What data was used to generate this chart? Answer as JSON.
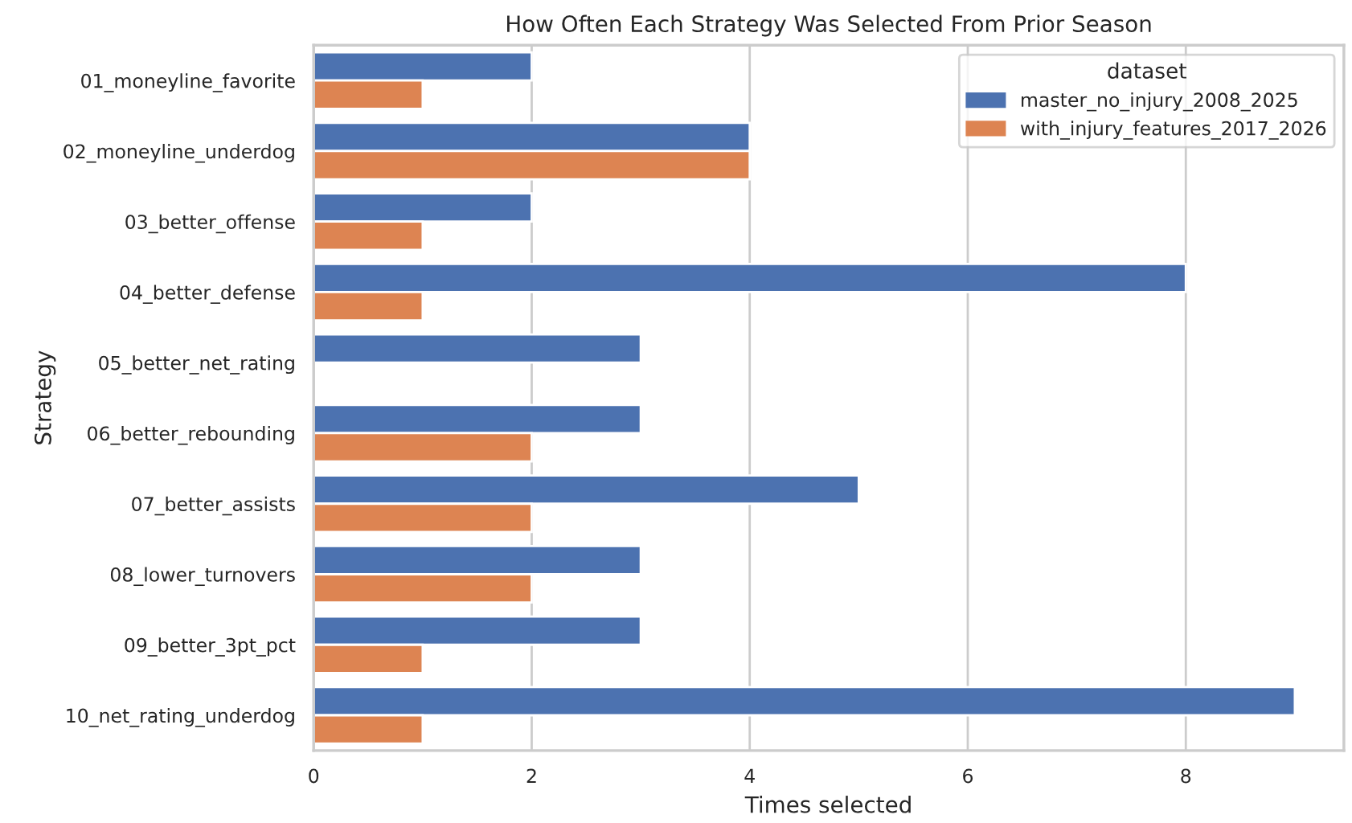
{
  "chart_data": {
    "type": "bar",
    "orientation": "horizontal",
    "title": "How Often Each Strategy Was Selected From Prior Season",
    "xlabel": "Times selected",
    "ylabel": "Strategy",
    "legend_title": "dataset",
    "categories": [
      "01_moneyline_favorite",
      "02_moneyline_underdog",
      "03_better_offense",
      "04_better_defense",
      "05_better_net_rating",
      "06_better_rebounding",
      "07_better_assists",
      "08_lower_turnovers",
      "09_better_3pt_pct",
      "10_net_rating_underdog"
    ],
    "series": [
      {
        "name": "master_no_injury_2008_2025",
        "color": "#4c72b0",
        "values": [
          2,
          4,
          2,
          8,
          3,
          3,
          5,
          3,
          3,
          9
        ]
      },
      {
        "name": "with_injury_features_2017_2026",
        "color": "#dd8452",
        "values": [
          1,
          4,
          1,
          1,
          null,
          2,
          2,
          2,
          1,
          1
        ]
      }
    ],
    "xlim": [
      0,
      9.45
    ],
    "xticks": [
      0,
      2,
      4,
      6,
      8
    ],
    "grid": "x",
    "legend": "top right"
  }
}
